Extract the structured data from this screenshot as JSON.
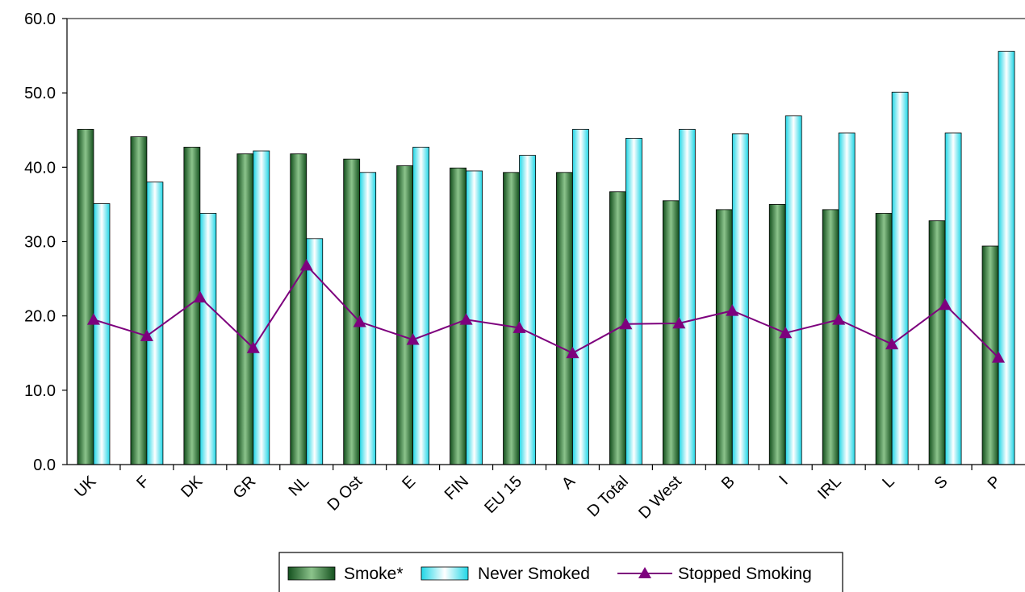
{
  "chart_data": {
    "type": "bar",
    "categories": [
      "UK",
      "F",
      "DK",
      "GR",
      "NL",
      "D Ost",
      "E",
      "FIN",
      "EU 15",
      "A",
      "D Total",
      "D West",
      "B",
      "I",
      "IRL",
      "L",
      "S",
      "P"
    ],
    "series": [
      {
        "name": "Smoke*",
        "type": "bar",
        "color": "#2f8a2f",
        "values": [
          45.1,
          44.1,
          42.7,
          41.8,
          41.8,
          41.1,
          40.2,
          39.9,
          39.3,
          39.3,
          36.7,
          35.5,
          34.3,
          35.0,
          34.3,
          33.8,
          32.8,
          29.4
        ]
      },
      {
        "name": "Never Smoked",
        "type": "bar",
        "color": "#baf4f6",
        "values": [
          35.1,
          38.0,
          33.8,
          42.2,
          30.4,
          39.3,
          42.7,
          39.5,
          41.6,
          45.1,
          43.9,
          45.1,
          44.5,
          46.9,
          44.6,
          50.1,
          44.6,
          55.6
        ]
      },
      {
        "name": "Stopped Smoking",
        "type": "line",
        "color": "#7d007d",
        "marker": "triangle",
        "values": [
          19.5,
          17.3,
          22.5,
          15.7,
          26.8,
          19.2,
          16.8,
          19.5,
          18.4,
          15.0,
          18.9,
          19.0,
          20.7,
          17.7,
          19.5,
          16.2,
          21.5,
          14.4
        ]
      }
    ],
    "yaxis": {
      "min": 0,
      "max": 60,
      "ticks": [
        "0.0",
        "10.0",
        "20.0",
        "30.0",
        "40.0",
        "50.0",
        "60.0"
      ]
    },
    "legend_position": "bottom-center"
  }
}
